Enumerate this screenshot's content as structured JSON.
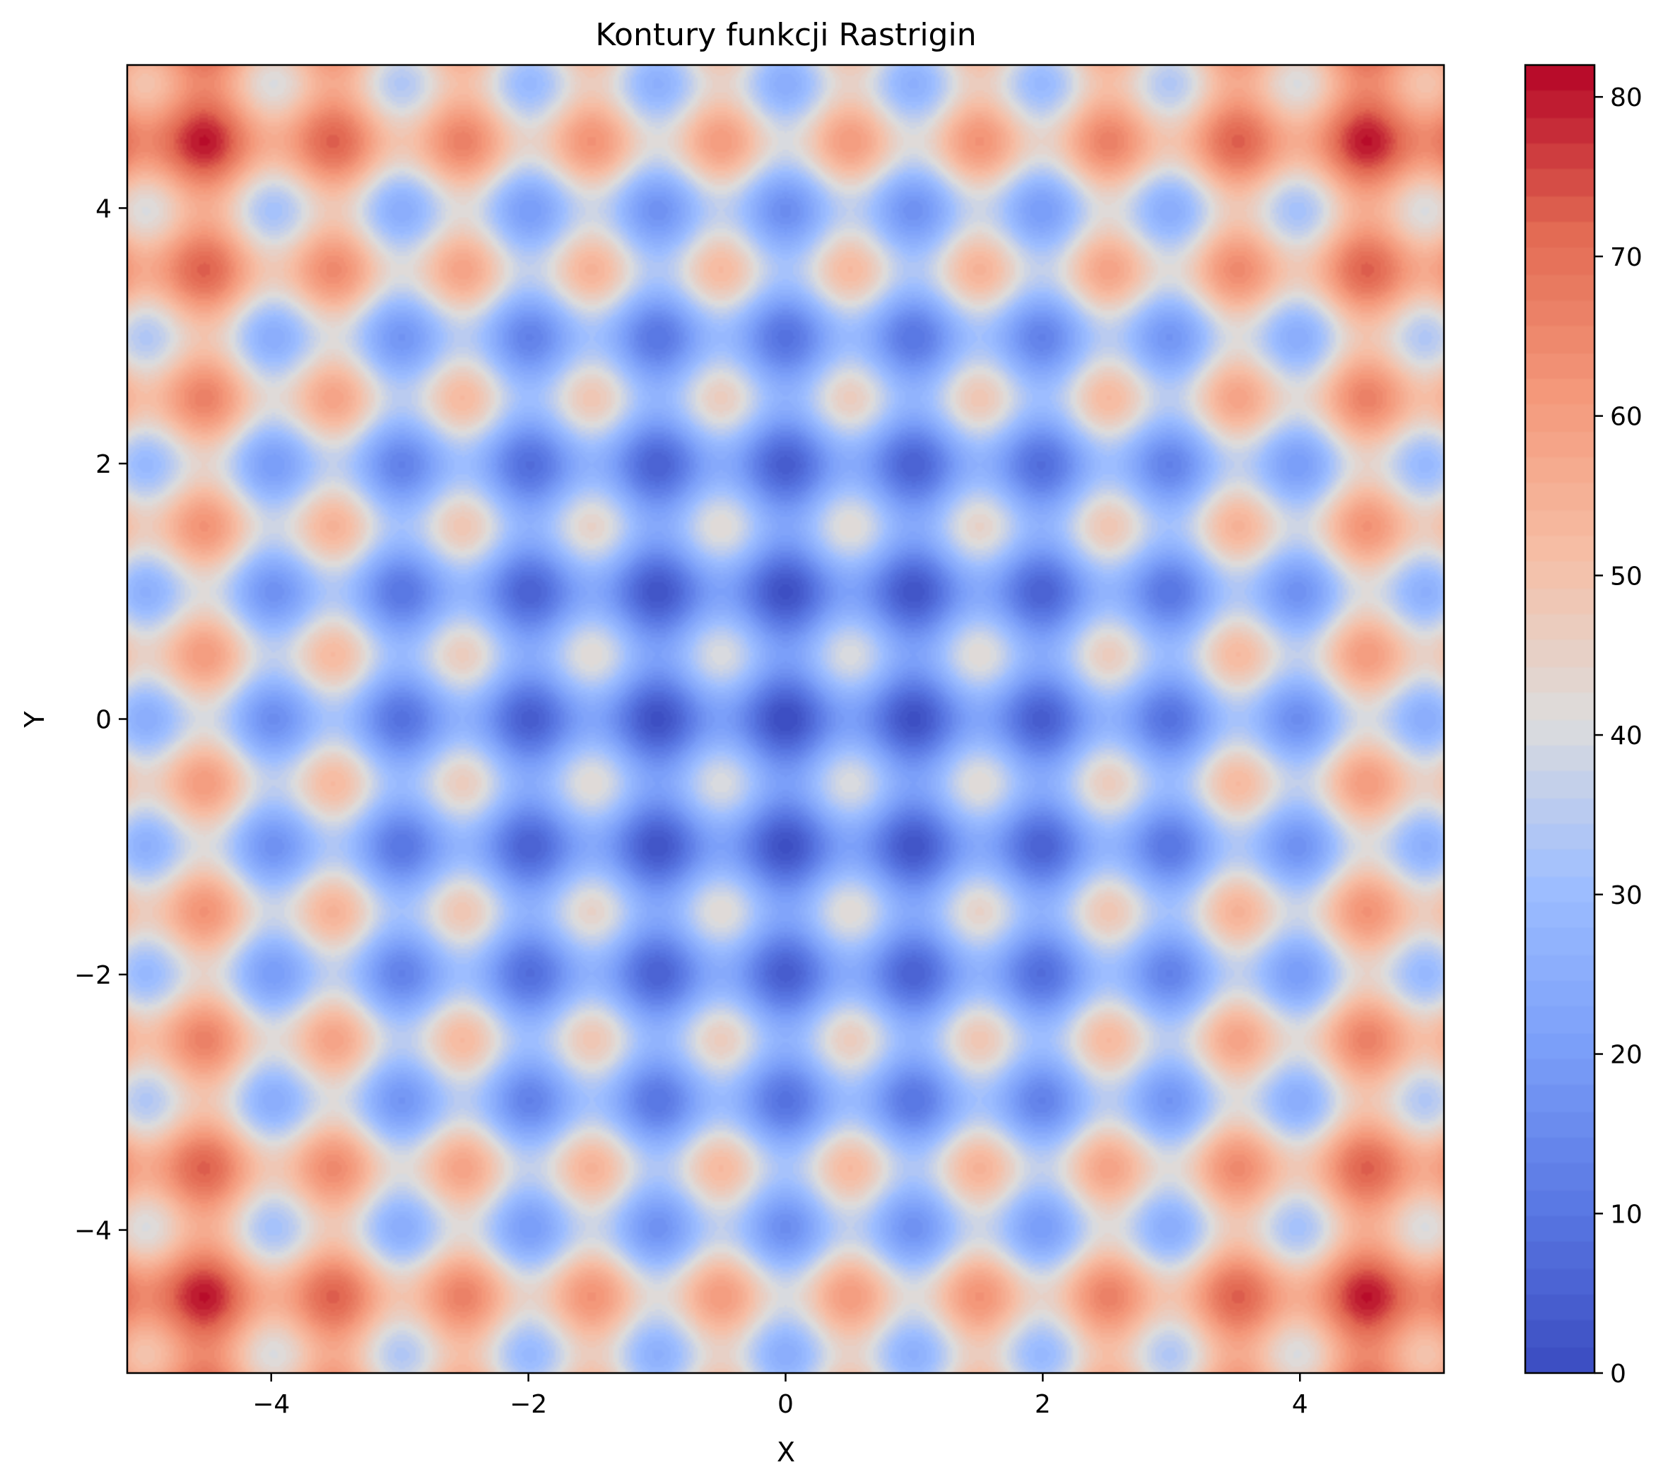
{
  "chart_data": {
    "type": "heatmap",
    "title": "Kontury funkcji Rastrigin",
    "xlabel": "X",
    "ylabel": "Y",
    "function": "rastrigin",
    "A": 10,
    "xlim": [
      -5.12,
      5.12
    ],
    "ylim": [
      -5.12,
      5.12
    ],
    "xticks": [
      -4,
      -2,
      0,
      2,
      4
    ],
    "yticks": [
      -4,
      -2,
      0,
      2,
      4
    ],
    "xtick_labels": [
      "−4",
      "−2",
      "0",
      "2",
      "4"
    ],
    "ytick_labels": [
      "−4",
      "−2",
      "0",
      "2",
      "4"
    ],
    "colorbar": {
      "range": [
        0,
        82
      ],
      "levels": 50,
      "ticks": [
        0,
        10,
        20,
        30,
        40,
        50,
        60,
        70,
        80
      ],
      "tick_labels": [
        "0",
        "10",
        "20",
        "30",
        "40",
        "50",
        "60",
        "70",
        "80"
      ],
      "colormap": "coolwarm"
    },
    "colormap_stops": [
      [
        0.0,
        "#3b4cc0"
      ],
      [
        0.125,
        "#5977e3"
      ],
      [
        0.25,
        "#7b9ff9"
      ],
      [
        0.375,
        "#9ebeff"
      ],
      [
        0.5,
        "#dddcdc"
      ],
      [
        0.625,
        "#f6bfa6"
      ],
      [
        0.75,
        "#f4987a"
      ],
      [
        0.875,
        "#e26952"
      ],
      [
        1.0,
        "#b40426"
      ]
    ],
    "grid": false
  }
}
